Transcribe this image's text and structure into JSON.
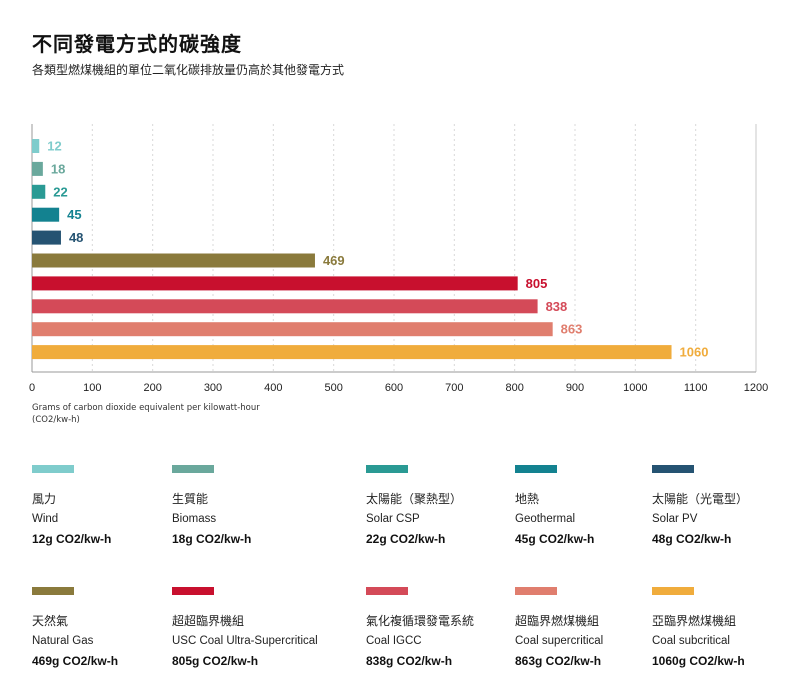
{
  "header": {
    "title": "不同發電方式的碳強度",
    "subtitle": "各類型燃煤機組的單位二氧化碳排放量仍高於其他發電方式"
  },
  "chart_data": {
    "type": "bar",
    "orientation": "horizontal",
    "categories": [
      "Wind",
      "Biomass",
      "Solar CSP",
      "Geothermal",
      "Solar PV",
      "Natural Gas",
      "USC Coal Ultra-Supercritical",
      "Coal IGCC",
      "Coal supercritical",
      "Coal subcritical"
    ],
    "values": [
      12,
      18,
      22,
      45,
      48,
      469,
      805,
      838,
      863,
      1060
    ],
    "colors": [
      "#7fcccc",
      "#6aa89c",
      "#2a9a94",
      "#138290",
      "#255372",
      "#8a7a3c",
      "#c8102e",
      "#d44a58",
      "#e07e6e",
      "#f0ac3c"
    ],
    "xlabel": "Grams of carbon dioxide equivalent per kilowatt-hour (CO2/kw-h)",
    "xlim": [
      0,
      1200
    ],
    "xticks": [
      0,
      100,
      200,
      300,
      400,
      500,
      600,
      700,
      800,
      900,
      1000,
      1100,
      1200
    ],
    "grid": "vertical-dotted"
  },
  "legend": [
    {
      "zh": "風力",
      "en": "Wind",
      "value": "12g  CO2/kw-h",
      "color": "#7fcccc"
    },
    {
      "zh": "生質能",
      "en": "Biomass",
      "value": "18g  CO2/kw-h",
      "color": "#6aa89c"
    },
    {
      "zh": "太陽能（聚熱型）",
      "en": "Solar CSP",
      "value": "22g  CO2/kw-h",
      "color": "#2a9a94"
    },
    {
      "zh": "地熱",
      "en": "Geothermal",
      "value": "45g  CO2/kw-h",
      "color": "#138290"
    },
    {
      "zh": "太陽能（光電型）",
      "en": "Solar PV",
      "value": "48g  CO2/kw-h",
      "color": "#255372"
    },
    {
      "zh": "天然氣",
      "en": "Natural Gas",
      "value": "469g  CO2/kw-h",
      "color": "#8a7a3c"
    },
    {
      "zh": "超超臨界機組",
      "en": "USC Coal Ultra-Supercritical",
      "value": "805g CO2/kw-h",
      "color": "#c8102e"
    },
    {
      "zh": "氣化複循環發電系統",
      "en": "Coal IGCC",
      "value": "838g CO2/kw-h",
      "color": "#d44a58"
    },
    {
      "zh": "超臨界燃煤機組",
      "en": "Coal supercritical",
      "value": "863g CO2/kw-h",
      "color": "#e07e6e"
    },
    {
      "zh": "亞臨界燃煤機組",
      "en": "Coal subcritical",
      "value": "1060g CO2/kw-h",
      "color": "#f0ac3c"
    }
  ]
}
